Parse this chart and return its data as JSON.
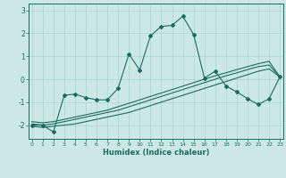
{
  "title": "",
  "xlabel": "Humidex (Indice chaleur)",
  "ylabel": "",
  "background_color": "#cce8e4",
  "line_color": "#1a6b60",
  "grid_color": "#aad4ce",
  "x_values": [
    0,
    1,
    2,
    3,
    4,
    5,
    6,
    7,
    8,
    9,
    10,
    11,
    12,
    13,
    14,
    15,
    16,
    17,
    18,
    19,
    20,
    21,
    22,
    23
  ],
  "y_main": [
    -2.0,
    -2.0,
    -2.3,
    -0.7,
    -0.65,
    -0.8,
    -0.9,
    -0.9,
    -0.4,
    1.1,
    0.4,
    1.9,
    2.3,
    2.35,
    2.75,
    1.95,
    0.05,
    0.35,
    -0.3,
    -0.55,
    -0.85,
    -1.1,
    -0.85,
    0.1
  ],
  "y_line1": [
    -2.05,
    -2.1,
    -2.05,
    -2.0,
    -1.95,
    -1.85,
    -1.75,
    -1.65,
    -1.55,
    -1.45,
    -1.3,
    -1.15,
    -1.0,
    -0.85,
    -0.7,
    -0.55,
    -0.4,
    -0.25,
    -0.1,
    0.05,
    0.2,
    0.35,
    0.45,
    0.1
  ],
  "y_line2": [
    -1.95,
    -2.0,
    -1.95,
    -1.85,
    -1.75,
    -1.65,
    -1.55,
    -1.45,
    -1.35,
    -1.2,
    -1.05,
    -0.9,
    -0.75,
    -0.6,
    -0.45,
    -0.3,
    -0.15,
    0.0,
    0.15,
    0.28,
    0.42,
    0.55,
    0.62,
    0.1
  ],
  "y_line3": [
    -1.85,
    -1.9,
    -1.85,
    -1.75,
    -1.65,
    -1.55,
    -1.45,
    -1.35,
    -1.2,
    -1.05,
    -0.9,
    -0.75,
    -0.6,
    -0.45,
    -0.3,
    -0.15,
    0.0,
    0.15,
    0.28,
    0.42,
    0.55,
    0.68,
    0.78,
    0.1
  ],
  "ylim": [
    -2.6,
    3.3
  ],
  "yticks": [
    -2,
    -1,
    0,
    1,
    2,
    3
  ],
  "xticks": [
    0,
    1,
    2,
    3,
    4,
    5,
    6,
    7,
    8,
    9,
    10,
    11,
    12,
    13,
    14,
    15,
    16,
    17,
    18,
    19,
    20,
    21,
    22,
    23
  ],
  "xlim": [
    -0.3,
    23.3
  ]
}
